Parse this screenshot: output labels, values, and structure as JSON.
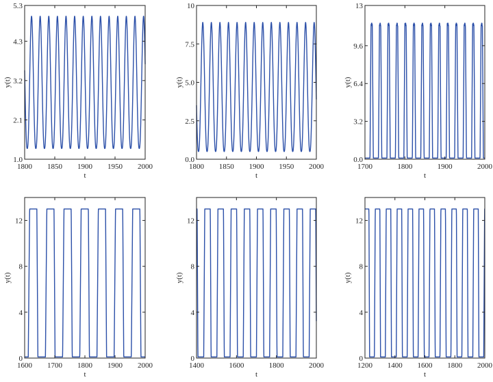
{
  "chart_data": [
    {
      "type": "line",
      "xlabel": "t",
      "ylabel": "y(t)",
      "xlim": [
        1800,
        2000
      ],
      "ylim": [
        1.0,
        5.3
      ],
      "xticks": [
        1800,
        1850,
        1900,
        1950,
        2000
      ],
      "yticks": [
        "1.0",
        "2.1",
        "3.2",
        "4.3",
        "5.3"
      ],
      "series": [
        {
          "color": "#2b4fa8",
          "style": "sinusoidal oscillation",
          "period": 14.3,
          "phase": 10,
          "min": 1.3,
          "max": 5.0
        }
      ]
    },
    {
      "type": "line",
      "xlabel": "t",
      "ylabel": "y(t)",
      "xlim": [
        1800,
        2000
      ],
      "ylim": [
        0.0,
        10
      ],
      "xticks": [
        1800,
        1850,
        1900,
        1950,
        2000
      ],
      "yticks": [
        "0.0",
        "2.5",
        "5.0",
        "7.5",
        "10"
      ],
      "series": [
        {
          "color": "#2b4fa8",
          "style": "sinusoidal oscillation",
          "period": 14.3,
          "phase": 11,
          "min": 0.5,
          "max": 8.9
        }
      ]
    },
    {
      "type": "line",
      "xlabel": "t",
      "ylabel": "y(t)",
      "xlim": [
        1700,
        2000
      ],
      "ylim": [
        0.0,
        13
      ],
      "xticks": [
        1700,
        1800,
        1900,
        2000
      ],
      "yticks": [
        "0.0",
        "3.2",
        "6.4",
        "9.6",
        "13"
      ],
      "series": [
        {
          "color": "#2b4fa8",
          "style": "relaxation oscillation",
          "period": 21.2,
          "phase": 16,
          "min": 0.1,
          "max": 11.5
        }
      ]
    },
    {
      "type": "line",
      "xlabel": "t",
      "ylabel": "y(t)",
      "xlim": [
        1600,
        2000
      ],
      "ylim": [
        0,
        14
      ],
      "xticks": [
        1600,
        1700,
        1800,
        1900,
        2000
      ],
      "yticks": [
        "0",
        "4",
        "8",
        "12"
      ],
      "series": [
        {
          "color": "#2b4fa8",
          "style": "square-wave oscillation",
          "period": 57,
          "phase": 45,
          "min": 0.1,
          "max": 13.0
        }
      ]
    },
    {
      "type": "line",
      "xlabel": "t",
      "ylabel": "y(t)",
      "xlim": [
        1400,
        2000
      ],
      "ylim": [
        0,
        14
      ],
      "xticks": [
        1400,
        1600,
        1800,
        2000
      ],
      "yticks": [
        "0",
        "4",
        "8",
        "12"
      ],
      "series": [
        {
          "color": "#2b4fa8",
          "style": "square-wave oscillation",
          "period": 66,
          "phase": 30,
          "min": 0.1,
          "max": 13.0
        }
      ]
    },
    {
      "type": "line",
      "xlabel": "t",
      "ylabel": "y(t)",
      "xlim": [
        1200,
        2000
      ],
      "ylim": [
        0,
        14
      ],
      "xticks": [
        1200,
        1400,
        1600,
        1800,
        2000
      ],
      "yticks": [
        "0",
        "4",
        "8",
        "12"
      ],
      "series": [
        {
          "color": "#2b4fa8",
          "style": "square-wave oscillation",
          "period": 73,
          "phase": 10,
          "min": 0.1,
          "max": 13.0
        }
      ]
    }
  ]
}
